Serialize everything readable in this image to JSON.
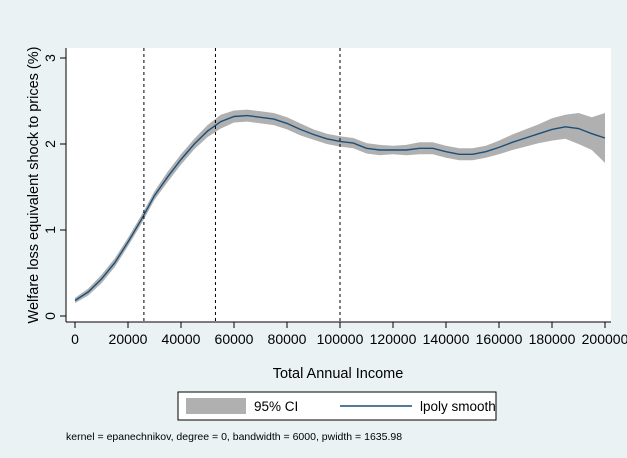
{
  "chart_data": {
    "type": "line",
    "title": "",
    "xlabel": "Total Annual Income",
    "ylabel": "Welfare loss equivalent shock to prices (%)",
    "xlim": [
      0,
      200000
    ],
    "ylim": [
      0,
      3
    ],
    "xticks": [
      0,
      20000,
      40000,
      60000,
      80000,
      100000,
      120000,
      140000,
      160000,
      180000,
      200000
    ],
    "xtick_labels": [
      "0",
      "20000",
      "40000",
      "60000",
      "80000",
      "100000",
      "120000",
      "140000",
      "160000",
      "180000",
      "200000"
    ],
    "yticks": [
      0,
      1,
      2,
      3
    ],
    "ytick_labels": [
      "0",
      "1",
      "2",
      "3"
    ],
    "vlines": [
      26000,
      53000,
      100000
    ],
    "grid": false,
    "series": [
      {
        "name": "lpoly smooth",
        "kind": "line",
        "color": "#1a4f7a",
        "x": [
          0,
          5000,
          10000,
          15000,
          20000,
          25000,
          30000,
          35000,
          40000,
          45000,
          50000,
          55000,
          60000,
          65000,
          70000,
          75000,
          80000,
          85000,
          90000,
          95000,
          100000,
          105000,
          110000,
          115000,
          120000,
          125000,
          130000,
          135000,
          140000,
          145000,
          150000,
          155000,
          160000,
          165000,
          170000,
          175000,
          180000,
          185000,
          190000,
          195000,
          200000
        ],
        "y": [
          0.18,
          0.28,
          0.43,
          0.62,
          0.86,
          1.12,
          1.4,
          1.62,
          1.82,
          2.0,
          2.15,
          2.26,
          2.32,
          2.33,
          2.31,
          2.29,
          2.24,
          2.17,
          2.11,
          2.06,
          2.03,
          2.01,
          1.95,
          1.93,
          1.93,
          1.93,
          1.95,
          1.95,
          1.91,
          1.88,
          1.88,
          1.91,
          1.96,
          2.02,
          2.07,
          2.12,
          2.17,
          2.2,
          2.18,
          2.12,
          2.07
        ]
      },
      {
        "name": "95% CI",
        "kind": "band",
        "color": "#b0b0b0",
        "x": [
          0,
          5000,
          10000,
          15000,
          20000,
          25000,
          30000,
          35000,
          40000,
          45000,
          50000,
          55000,
          60000,
          65000,
          70000,
          75000,
          80000,
          85000,
          90000,
          95000,
          100000,
          105000,
          110000,
          115000,
          120000,
          125000,
          130000,
          135000,
          140000,
          145000,
          150000,
          155000,
          160000,
          165000,
          170000,
          175000,
          180000,
          185000,
          190000,
          195000,
          200000
        ],
        "lower": [
          0.15,
          0.24,
          0.38,
          0.57,
          0.81,
          1.07,
          1.35,
          1.56,
          1.76,
          1.94,
          2.08,
          2.18,
          2.25,
          2.26,
          2.24,
          2.22,
          2.17,
          2.1,
          2.05,
          2.0,
          1.97,
          1.95,
          1.89,
          1.87,
          1.88,
          1.87,
          1.88,
          1.88,
          1.84,
          1.81,
          1.81,
          1.84,
          1.88,
          1.93,
          1.97,
          2.01,
          2.04,
          2.06,
          2.0,
          1.93,
          1.78
        ]
      },
      {
        "name": "95% CI upper",
        "kind": "band-upper",
        "upper": [
          0.21,
          0.32,
          0.48,
          0.67,
          0.91,
          1.17,
          1.45,
          1.68,
          1.88,
          2.06,
          2.22,
          2.34,
          2.39,
          2.4,
          2.38,
          2.36,
          2.31,
          2.24,
          2.17,
          2.12,
          2.09,
          2.07,
          2.01,
          1.99,
          1.98,
          1.99,
          2.02,
          2.02,
          1.98,
          1.95,
          1.95,
          1.98,
          2.04,
          2.11,
          2.17,
          2.23,
          2.3,
          2.34,
          2.36,
          2.31,
          2.36
        ]
      }
    ],
    "legend": {
      "placement": "bottom",
      "items": [
        "95% CI",
        "lpoly smooth"
      ]
    },
    "note": "kernel = epanechnikov, degree = 0, bandwidth = 6000, pwidth = 1635.98"
  }
}
